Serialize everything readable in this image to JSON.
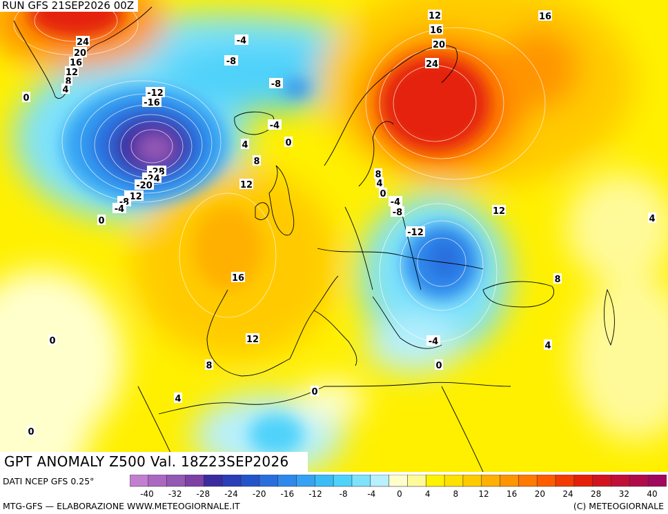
{
  "header": {
    "run_label": "RUN GFS 21SEP2026 00Z"
  },
  "map": {
    "title": "GPT ANOMALY Z500 Val. 18Z23SEP2026",
    "contour_labels": [
      "24",
      "20",
      "16",
      "12",
      "8",
      "4",
      "0",
      "-4",
      "-8",
      "-8",
      "-12",
      "-16",
      "-28",
      "-24",
      "-20",
      "-12",
      "-8",
      "-4",
      "0",
      "4",
      "0",
      "-4",
      "8",
      "12",
      "12",
      "16",
      "20",
      "24",
      "16",
      "8",
      "4",
      "0",
      "-4",
      "-8",
      "-12",
      "12",
      "4",
      "16",
      "12",
      "8",
      "4",
      "-4",
      "0",
      "8",
      "0",
      "0",
      "0",
      "4"
    ]
  },
  "legend": {
    "data_source": "DATI NCEP GFS 0.25°",
    "tick_labels": [
      "-40",
      "-32",
      "-28",
      "-24",
      "-20",
      "-16",
      "-12",
      "-8",
      "-4",
      "0",
      "4",
      "8",
      "12",
      "16",
      "20",
      "24",
      "28",
      "32",
      "40"
    ],
    "colors": [
      "#c27fd0",
      "#ab68c3",
      "#9458b5",
      "#7c40a6",
      "#3b2ba0",
      "#2a3eb7",
      "#2454c9",
      "#2a6ede",
      "#2f89ec",
      "#36a2f3",
      "#3bbcf7",
      "#4fd2fa",
      "#7ee2fb",
      "#b8f0fd",
      "#ffffcc",
      "#fffa99",
      "#fff200",
      "#ffe100",
      "#ffcb00",
      "#ffb000",
      "#ff9500",
      "#ff7a00",
      "#ff5c00",
      "#f23b00",
      "#e4200a",
      "#d21220",
      "#c10f37",
      "#b10a4a",
      "#a0085d"
    ]
  },
  "footer": {
    "credit_left": "MTG-GFS — ELABORAZIONE WWW.METEOGIORNALE.IT",
    "credit_right": "(C) METEOGIORNALE"
  }
}
